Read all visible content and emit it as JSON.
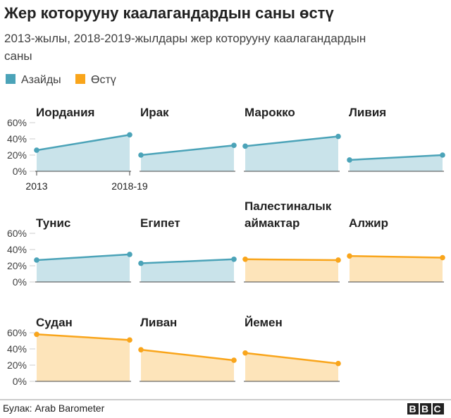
{
  "header": {
    "title": "Жер которууну каалагандардын саны өстү",
    "subtitle": "2013-жылы, 2018-2019-жылдары жер которууну каалагандардын саны"
  },
  "legend": [
    {
      "name": "Азайды",
      "color": "#4ba3b8"
    },
    {
      "name": "Өстү",
      "color": "#f9a51b"
    }
  ],
  "chart_data": [
    {
      "type": "line",
      "title": "Иордания",
      "categories": [
        "2013",
        "2018-19"
      ],
      "values": [
        26,
        45
      ],
      "color": "#4ba3b8",
      "ylim": [
        0,
        60
      ],
      "yticks": [
        {
          "value": 0,
          "label": "0%"
        },
        {
          "value": 20,
          "label": "20%"
        },
        {
          "value": 40,
          "label": "40%"
        },
        {
          "value": 60,
          "label": "60%"
        }
      ]
    },
    {
      "type": "line",
      "title": "Ирак",
      "values": [
        20,
        32
      ],
      "color": "#4ba3b8",
      "ylim": [
        0,
        60
      ]
    },
    {
      "type": "line",
      "title": "Марокко",
      "values": [
        31,
        43
      ],
      "color": "#4ba3b8",
      "ylim": [
        0,
        60
      ]
    },
    {
      "type": "line",
      "title": "Ливия",
      "values": [
        14,
        20
      ],
      "color": "#4ba3b8",
      "ylim": [
        0,
        60
      ]
    },
    {
      "type": "line",
      "title": "Тунис",
      "values": [
        27,
        34
      ],
      "color": "#4ba3b8",
      "ylim": [
        0,
        60
      ],
      "yticks": [
        {
          "value": 0,
          "label": "0%"
        },
        {
          "value": 20,
          "label": "20%"
        },
        {
          "value": 40,
          "label": "40%"
        },
        {
          "value": 60,
          "label": "60%"
        }
      ]
    },
    {
      "type": "line",
      "title": "Египет",
      "values": [
        23,
        28
      ],
      "color": "#4ba3b8",
      "ylim": [
        0,
        60
      ]
    },
    {
      "type": "line",
      "title": "Палестиналык аймактар",
      "values": [
        28,
        27
      ],
      "color": "#f9a51b",
      "ylim": [
        0,
        60
      ]
    },
    {
      "type": "line",
      "title": "Алжир",
      "values": [
        32,
        30
      ],
      "color": "#f9a51b",
      "ylim": [
        0,
        60
      ]
    },
    {
      "type": "line",
      "title": "Судан",
      "values": [
        58,
        51
      ],
      "color": "#f9a51b",
      "ylim": [
        0,
        60
      ],
      "yticks": [
        {
          "value": 0,
          "label": "0%"
        },
        {
          "value": 20,
          "label": "20%"
        },
        {
          "value": 40,
          "label": "40%"
        },
        {
          "value": 60,
          "label": "60%"
        }
      ]
    },
    {
      "type": "line",
      "title": "Ливан",
      "values": [
        39,
        26
      ],
      "color": "#f9a51b",
      "ylim": [
        0,
        60
      ]
    },
    {
      "type": "line",
      "title": "Йемен",
      "values": [
        35,
        22
      ],
      "color": "#f9a51b",
      "ylim": [
        0,
        60
      ]
    }
  ],
  "footer": {
    "source": "Булак: Arab Barometer",
    "logo": "BBC"
  }
}
